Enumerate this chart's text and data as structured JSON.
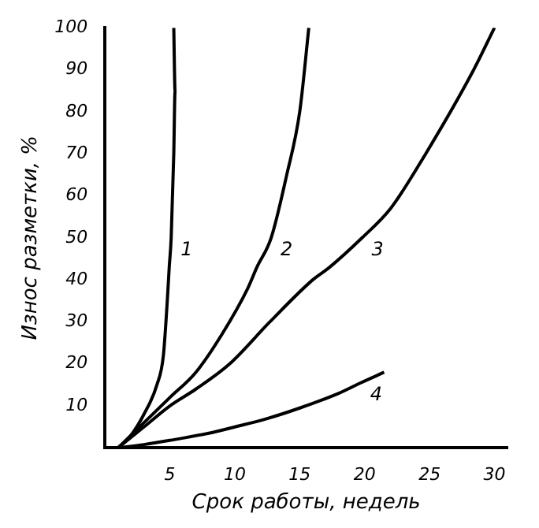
{
  "chart_data": {
    "type": "line",
    "xlabel": "Срок работы, недель",
    "ylabel": "Износ разметки, %",
    "xlim": [
      0,
      31
    ],
    "xticks": [
      5,
      10,
      15,
      20,
      25,
      30
    ],
    "ylim": [
      0,
      100
    ],
    "yticks": [
      10,
      20,
      30,
      40,
      50,
      60,
      70,
      80,
      90,
      100
    ],
    "grid": false,
    "series": [
      {
        "color": "#000000",
        "x": [
          1,
          2,
          3,
          4,
          4.5,
          4.8,
          4.95,
          5.1,
          5.3,
          5.4,
          5.3
        ],
        "values": [
          0,
          3,
          8,
          15,
          22,
          35,
          43,
          50,
          70,
          85,
          100
        ]
      },
      {
        "color": "#000000",
        "x": [
          1,
          2,
          3,
          5,
          7,
          9,
          11,
          11.7,
          12.8,
          14,
          15,
          15.7
        ],
        "values": [
          0,
          3,
          6,
          12,
          18,
          27,
          38,
          43,
          50,
          65,
          80,
          100
        ]
      },
      {
        "color": "#000000",
        "x": [
          1,
          3,
          5,
          7,
          9.6,
          12.7,
          16,
          17.3,
          19.8,
          22,
          24.7,
          28.4,
          30
        ],
        "values": [
          0,
          5,
          10,
          14,
          20,
          30,
          40,
          43,
          50,
          57,
          70,
          90,
          100
        ]
      },
      {
        "color": "#000000",
        "x": [
          1,
          3,
          5,
          8,
          10,
          12.5,
          15,
          18,
          19.7,
          21.5
        ],
        "values": [
          0,
          0.8,
          1.8,
          3.5,
          5,
          7,
          9.5,
          13,
          15.5,
          18
        ]
      }
    ],
    "annotations": [
      {
        "text": "1",
        "x": 5.1,
        "y": 50
      },
      {
        "text": "2",
        "x": 12.8,
        "y": 50
      },
      {
        "text": "3",
        "x": 19.8,
        "y": 50
      },
      {
        "text": "4",
        "x": 19.7,
        "y": 15.5
      }
    ]
  }
}
